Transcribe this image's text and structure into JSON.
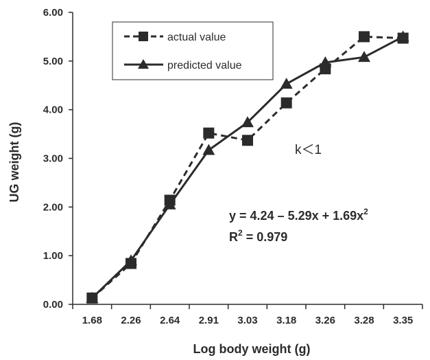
{
  "chart_data": {
    "type": "line",
    "xlabel": "Log body weight (g)",
    "ylabel": "UG weight (g)",
    "categories": [
      "1.68",
      "2.26",
      "2.64",
      "2.91",
      "3.03",
      "3.18",
      "3.26",
      "3.28",
      "3.35"
    ],
    "ylim": [
      0,
      6
    ],
    "yticks": [
      "0.00",
      "1.00",
      "2.00",
      "3.00",
      "4.00",
      "5.00",
      "6.00"
    ],
    "grid": false,
    "legend_position": "top-left",
    "series": [
      {
        "name": "actual value",
        "marker": "square",
        "line": "dashed",
        "values": [
          0.13,
          0.84,
          2.14,
          3.52,
          3.37,
          4.14,
          4.84,
          5.5,
          5.47
        ]
      },
      {
        "name": "predicted value",
        "marker": "triangle",
        "line": "solid",
        "values": [
          0.13,
          0.9,
          2.05,
          3.17,
          3.74,
          4.53,
          4.97,
          5.08,
          5.5
        ]
      }
    ],
    "annotations": {
      "k_condition": "k＜1",
      "equation_prefix": "y = 4.24 – 5.29x + 1.69x",
      "equation_exp": "2",
      "r2_prefix": "R",
      "r2_exp": "2",
      "r2_suffix": " = 0.979"
    }
  },
  "colors": {
    "ink": "#2b2b2b",
    "background": "#ffffff"
  }
}
